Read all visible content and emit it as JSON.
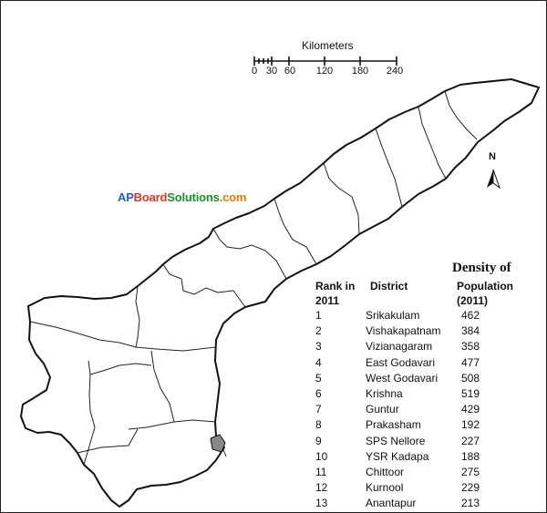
{
  "scale_bar": {
    "title": "Kilometers",
    "ticks": [
      "0",
      "30",
      "60",
      "120",
      "180",
      "240"
    ]
  },
  "north_label": "N",
  "watermark": {
    "part1": "AP",
    "part2": "Board",
    "part3": "Solutions",
    "part4": ".com"
  },
  "table": {
    "density_title": "Density of",
    "headers": {
      "rank_line1": "Rank in",
      "rank_line2": "2011",
      "district": "District",
      "pop_line1": "Population",
      "pop_line2": "(2011)"
    },
    "rows": [
      {
        "rank": "1",
        "district": "Srikakulam",
        "density": "462"
      },
      {
        "rank": "2",
        "district": "Vishakapatnam",
        "density": "384"
      },
      {
        "rank": "3",
        "district": "Vizianagaram",
        "density": "358"
      },
      {
        "rank": "4",
        "district": "East Godavari",
        "density": "477"
      },
      {
        "rank": "5",
        "district": "West Godavari",
        "density": "508"
      },
      {
        "rank": "6",
        "district": "Krishna",
        "density": "519"
      },
      {
        "rank": "7",
        "district": "Guntur",
        "density": "429"
      },
      {
        "rank": "8",
        "district": "Prakasham",
        "density": "192"
      },
      {
        "rank": "9",
        "district": "SPS Nellore",
        "density": "227"
      },
      {
        "rank": "10",
        "district": "YSR Kadapa",
        "density": "188"
      },
      {
        "rank": "11",
        "district": "Chittoor",
        "density": "275"
      },
      {
        "rank": "12",
        "district": "Kurnool",
        "density": "229"
      },
      {
        "rank": "13",
        "district": "Anantapur",
        "density": "213"
      }
    ]
  }
}
